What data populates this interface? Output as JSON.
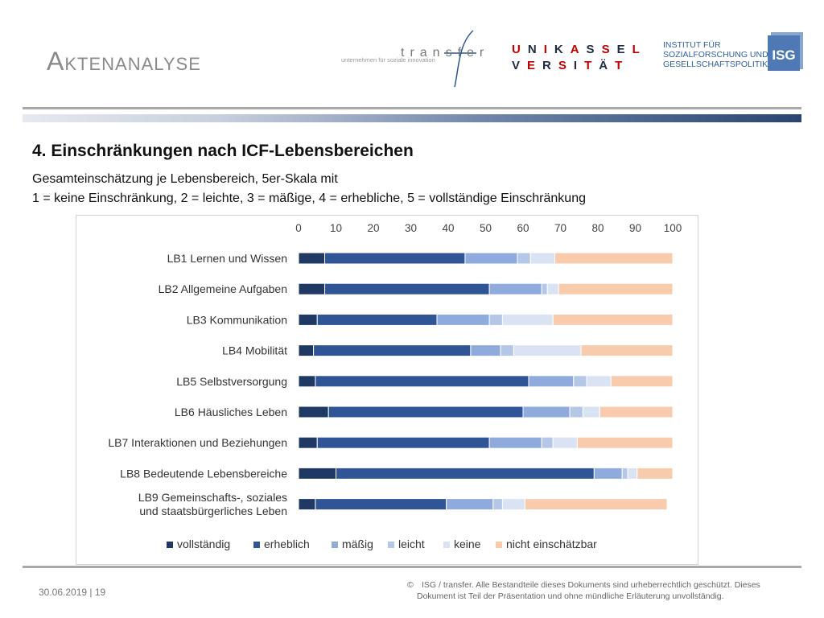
{
  "header": {
    "title": "Aktenanalyse",
    "logo_transfer_word": "transfer",
    "logo_transfer_tagline": "unternehmen für soziale innovation",
    "logo_kassel_row1": [
      "U",
      "N",
      "I",
      "K",
      "A",
      "S",
      "S",
      "E",
      "L"
    ],
    "logo_kassel_row2": [
      "V",
      "E",
      "R",
      "S",
      "I",
      "T",
      "Ä",
      "T"
    ],
    "logo_institute_lines": [
      "INSTITUT FÜR",
      "SOZIALFORSCHUNG UND",
      "GESELLSCHAFTSPOLITIK"
    ],
    "logo_isg_text": "ISG"
  },
  "content": {
    "heading": "4. Einschränkungen nach ICF-Lebensbereichen",
    "subtitle_line1": "Gesamteinschätzung je Lebensbereich, 5er-Skala mit",
    "subtitle_line2": "1 = keine Einschränkung, 2 = leichte, 3 = mäßige, 4 = erhebliche, 5 = vollständige Einschränkung"
  },
  "chart_data": {
    "type": "bar",
    "orientation": "horizontal",
    "stacked": true,
    "xlim": [
      0,
      100
    ],
    "xticks": [
      0,
      10,
      20,
      30,
      40,
      50,
      60,
      70,
      80,
      90,
      100
    ],
    "axis_position": "top",
    "legend_position": "bottom",
    "categories": [
      [
        "LB1 Lernen und Wissen"
      ],
      [
        "LB2 Allgemeine Aufgaben"
      ],
      [
        "LB3 Kommunikation"
      ],
      [
        "LB4 Mobilität"
      ],
      [
        "LB5 Selbstversorgung"
      ],
      [
        "LB6 Häusliches Leben"
      ],
      [
        "LB7 Interaktionen und Beziehungen"
      ],
      [
        "LB8 Bedeutende Lebensbereiche"
      ],
      [
        "LB9 Gemeinschafts-, soziales",
        "und staatsbürgerliches Leben"
      ]
    ],
    "series": [
      {
        "name": "vollständig",
        "color": "#1f3864",
        "values": [
          7,
          7,
          5,
          4,
          4.5,
          8,
          5,
          10,
          4.5
        ]
      },
      {
        "name": "erheblich",
        "color": "#2f5597",
        "values": [
          37.5,
          44,
          32,
          42,
          57,
          52,
          46,
          69,
          35
        ]
      },
      {
        "name": "mäßig",
        "color": "#8faadc",
        "values": [
          14,
          14,
          14,
          8,
          12,
          12.5,
          14,
          7.5,
          12.5
        ]
      },
      {
        "name": "leicht",
        "color": "#b4c7e7",
        "values": [
          3.5,
          1.5,
          3.5,
          3.5,
          3.5,
          3.5,
          3,
          1.5,
          2.5
        ]
      },
      {
        "name": "keine",
        "color": "#dae3f3",
        "values": [
          6.5,
          3,
          13.5,
          18,
          6.5,
          4.5,
          6.5,
          2.5,
          6
        ]
      },
      {
        "name": "nicht einschätzbar",
        "color": "#f8cbad",
        "values": [
          31.5,
          30.5,
          32,
          24.5,
          16.5,
          19.5,
          25.5,
          9.5,
          38
        ]
      }
    ]
  },
  "footer": {
    "date_page": "30.06.2019 | 19",
    "copyright_symbol": "©",
    "copyright_line1": "ISG / transfer. Alle Bestandteile dieses Dokuments sind urheberrechtlich geschützt. Dieses",
    "copyright_line2": "Dokument ist Teil der Präsentation und ohne mündliche Erläuterung unvollständig."
  }
}
